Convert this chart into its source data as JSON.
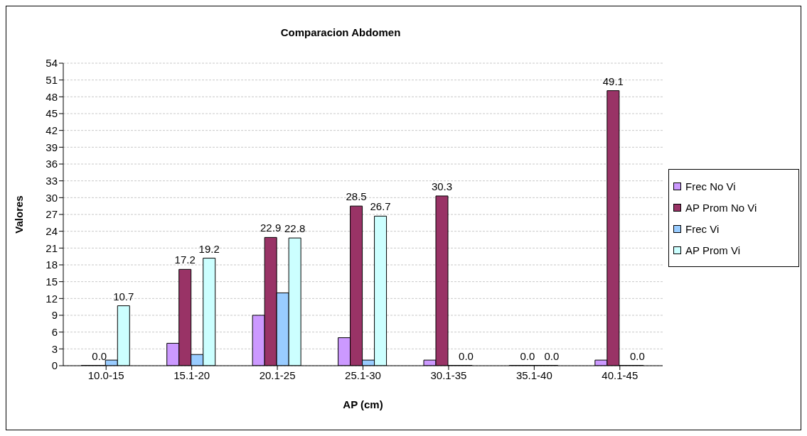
{
  "chart_data": {
    "type": "bar",
    "title": "Comparacion Abdomen",
    "xlabel": "AP (cm)",
    "ylabel": "Valores",
    "categories": [
      "10.0-15",
      "15.1-20",
      "20.1-25",
      "25.1-30",
      "30.1-35",
      "35.1-40",
      "40.1-45"
    ],
    "series": [
      {
        "name": "Frec No Vi",
        "color": "#cc99ff",
        "values": [
          0,
          4,
          9,
          5,
          1,
          0,
          1
        ]
      },
      {
        "name": "AP Prom No Vi",
        "color": "#993366",
        "values": [
          0.0,
          17.2,
          22.9,
          28.5,
          30.3,
          0.0,
          49.1
        ],
        "value_labels": [
          "0.0",
          "17.2",
          "22.9",
          "28.5",
          "30.3",
          "0.0",
          "49.1"
        ]
      },
      {
        "name": "Frec Vi",
        "color": "#99ccff",
        "values": [
          1,
          2,
          13,
          1,
          0,
          0,
          0
        ]
      },
      {
        "name": "AP Prom Vi",
        "color": "#ccffff",
        "values": [
          10.7,
          19.2,
          22.8,
          26.7,
          0.0,
          0.0,
          0.0
        ],
        "value_labels": [
          "10.7",
          "19.2",
          "22.8",
          "26.7",
          "0.0",
          "0.0",
          "0.0"
        ]
      }
    ],
    "ylim": [
      0,
      54
    ],
    "yticks": [
      0,
      3,
      6,
      9,
      12,
      15,
      18,
      21,
      24,
      27,
      30,
      33,
      36,
      39,
      42,
      45,
      48,
      51,
      54
    ],
    "grid": "y",
    "legend": "right"
  }
}
